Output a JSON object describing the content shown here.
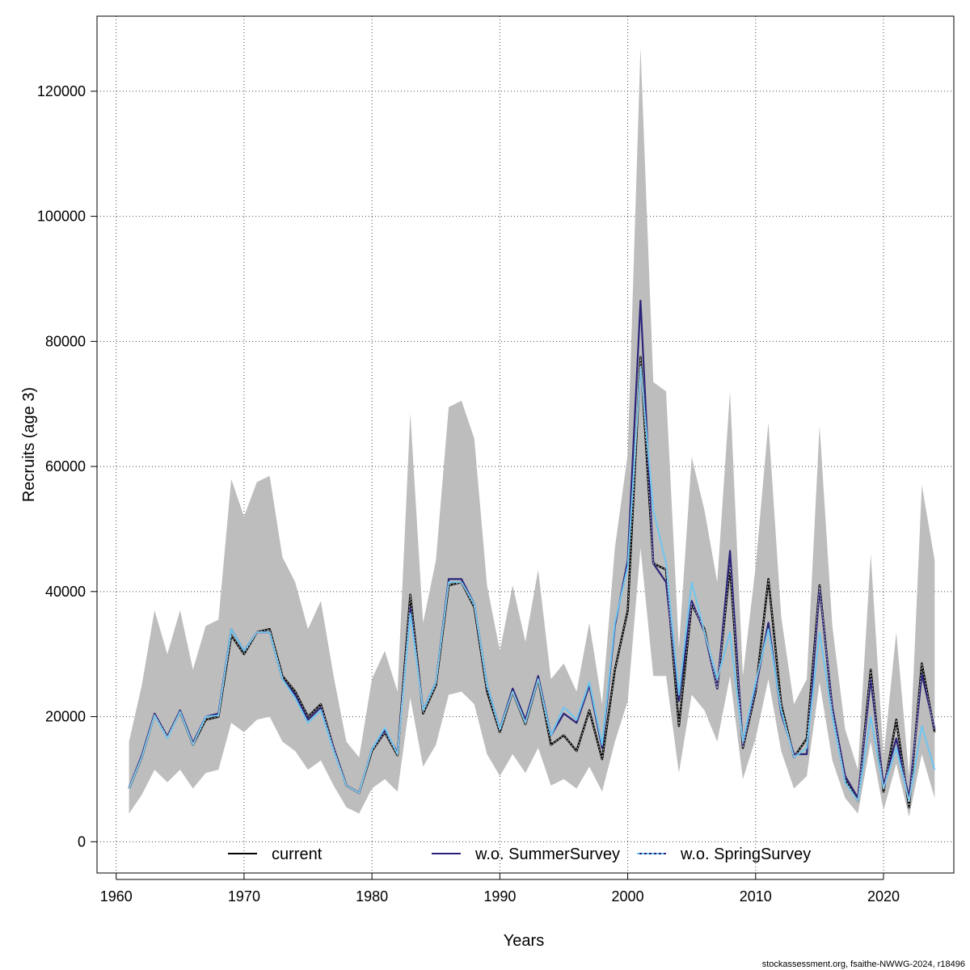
{
  "chart_data": {
    "type": "line",
    "xlabel": "Years",
    "ylabel": "Recruits (age 3)",
    "xlim": [
      1958.5,
      2025.5
    ],
    "ylim": [
      -5000,
      132000
    ],
    "xticks": [
      1960,
      1970,
      1980,
      1990,
      2000,
      2010,
      2020
    ],
    "yticks": [
      0,
      20000,
      40000,
      60000,
      80000,
      100000,
      120000
    ],
    "grid": true,
    "legend_position": "bottom",
    "x": [
      1961,
      1962,
      1963,
      1964,
      1965,
      1966,
      1967,
      1968,
      1969,
      1970,
      1971,
      1972,
      1973,
      1974,
      1975,
      1976,
      1977,
      1978,
      1979,
      1980,
      1981,
      1982,
      1983,
      1984,
      1985,
      1986,
      1987,
      1988,
      1989,
      1990,
      1991,
      1992,
      1993,
      1994,
      1995,
      1996,
      1997,
      1998,
      1999,
      2000,
      2001,
      2002,
      2003,
      2004,
      2005,
      2006,
      2007,
      2008,
      2009,
      2010,
      2011,
      2012,
      2013,
      2014,
      2015,
      2016,
      2017,
      2018,
      2019,
      2020,
      2021,
      2022,
      2023,
      2024
    ],
    "confidence_band": {
      "lower": [
        4500,
        7500,
        11500,
        9500,
        11500,
        8500,
        11000,
        11500,
        19000,
        17500,
        19500,
        20000,
        16000,
        14500,
        11500,
        13000,
        9000,
        5500,
        4500,
        8500,
        10000,
        8000,
        23000,
        12000,
        15500,
        23500,
        24000,
        22000,
        14000,
        10500,
        14000,
        11000,
        15000,
        9000,
        10000,
        8500,
        12000,
        8000,
        16000,
        22500,
        47000,
        26500,
        26500,
        11000,
        23500,
        21000,
        16000,
        26500,
        10000,
        16500,
        26000,
        14500,
        8500,
        10500,
        25500,
        13000,
        7000,
        4500,
        16000,
        5000,
        12500,
        4000,
        14000,
        7000
      ],
      "upper": [
        16000,
        25000,
        37000,
        30000,
        37000,
        27500,
        34500,
        35500,
        58000,
        52000,
        57500,
        58500,
        45500,
        41500,
        34000,
        38500,
        26500,
        16000,
        13500,
        26000,
        30500,
        24000,
        68500,
        35000,
        45000,
        69500,
        70500,
        64500,
        41000,
        30500,
        41000,
        32000,
        43500,
        26000,
        28500,
        24000,
        35000,
        22000,
        47000,
        62000,
        127000,
        73500,
        72000,
        31000,
        61500,
        53000,
        41500,
        72000,
        26500,
        44000,
        67000,
        36000,
        22000,
        26000,
        66500,
        34500,
        18000,
        11500,
        46000,
        13500,
        33500,
        10500,
        57000,
        45000
      ]
    },
    "series": [
      {
        "name": "current",
        "color": "#000000",
        "values": [
          8500,
          13500,
          20300,
          16800,
          20800,
          15500,
          19500,
          20000,
          33000,
          30000,
          33500,
          34000,
          26500,
          24000,
          20000,
          22000,
          15000,
          9000,
          7800,
          14500,
          17500,
          13800,
          39500,
          20500,
          25000,
          41000,
          41500,
          37500,
          24000,
          17500,
          24000,
          18800,
          26000,
          15500,
          17000,
          14500,
          21000,
          13200,
          27500,
          37000,
          77500,
          44500,
          43500,
          18500,
          38000,
          34000,
          24500,
          44000,
          15000,
          24000,
          42000,
          22000,
          13500,
          16500,
          41000,
          21000,
          10000,
          6500,
          27500,
          8000,
          19500,
          5500,
          28500,
          17500
        ]
      },
      {
        "name": "w.o. SummerSurvey",
        "color": "#2a2378",
        "values": [
          8600,
          13800,
          20500,
          16800,
          21000,
          15800,
          20000,
          20500,
          34000,
          30500,
          33500,
          33500,
          26000,
          23500,
          19500,
          21500,
          15000,
          9000,
          7800,
          14800,
          17800,
          14200,
          37500,
          21000,
          25500,
          42000,
          42000,
          38000,
          25000,
          18000,
          24500,
          19500,
          26500,
          17000,
          20500,
          19000,
          25000,
          15000,
          34500,
          45000,
          86500,
          44500,
          41500,
          22500,
          38500,
          33500,
          24500,
          46500,
          15300,
          24500,
          35000,
          20500,
          14000,
          14000,
          40500,
          21500,
          10500,
          7000,
          26000,
          9000,
          16500,
          7000,
          26800,
          18000
        ]
      },
      {
        "name": "w.o. SpringSurvey",
        "color": "#6ec6f0",
        "values": [
          8500,
          13500,
          20200,
          16500,
          20800,
          15500,
          20000,
          20200,
          34000,
          30500,
          33500,
          33500,
          26000,
          23000,
          19000,
          21000,
          14500,
          9000,
          7800,
          14800,
          18200,
          14000,
          36500,
          21000,
          25500,
          41500,
          41500,
          38000,
          25000,
          18000,
          24000,
          19000,
          26000,
          17000,
          21500,
          19500,
          25500,
          15500,
          35000,
          44000,
          76000,
          53000,
          44500,
          23500,
          41500,
          33500,
          26000,
          33500,
          16000,
          25500,
          34000,
          21000,
          13500,
          15000,
          33500,
          20000,
          9500,
          6500,
          20000,
          8500,
          15000,
          6500,
          18500,
          11500
        ]
      }
    ]
  },
  "footer": {
    "credit": "stockassessment.org, fsaithe-NWWG-2024, r18496"
  }
}
